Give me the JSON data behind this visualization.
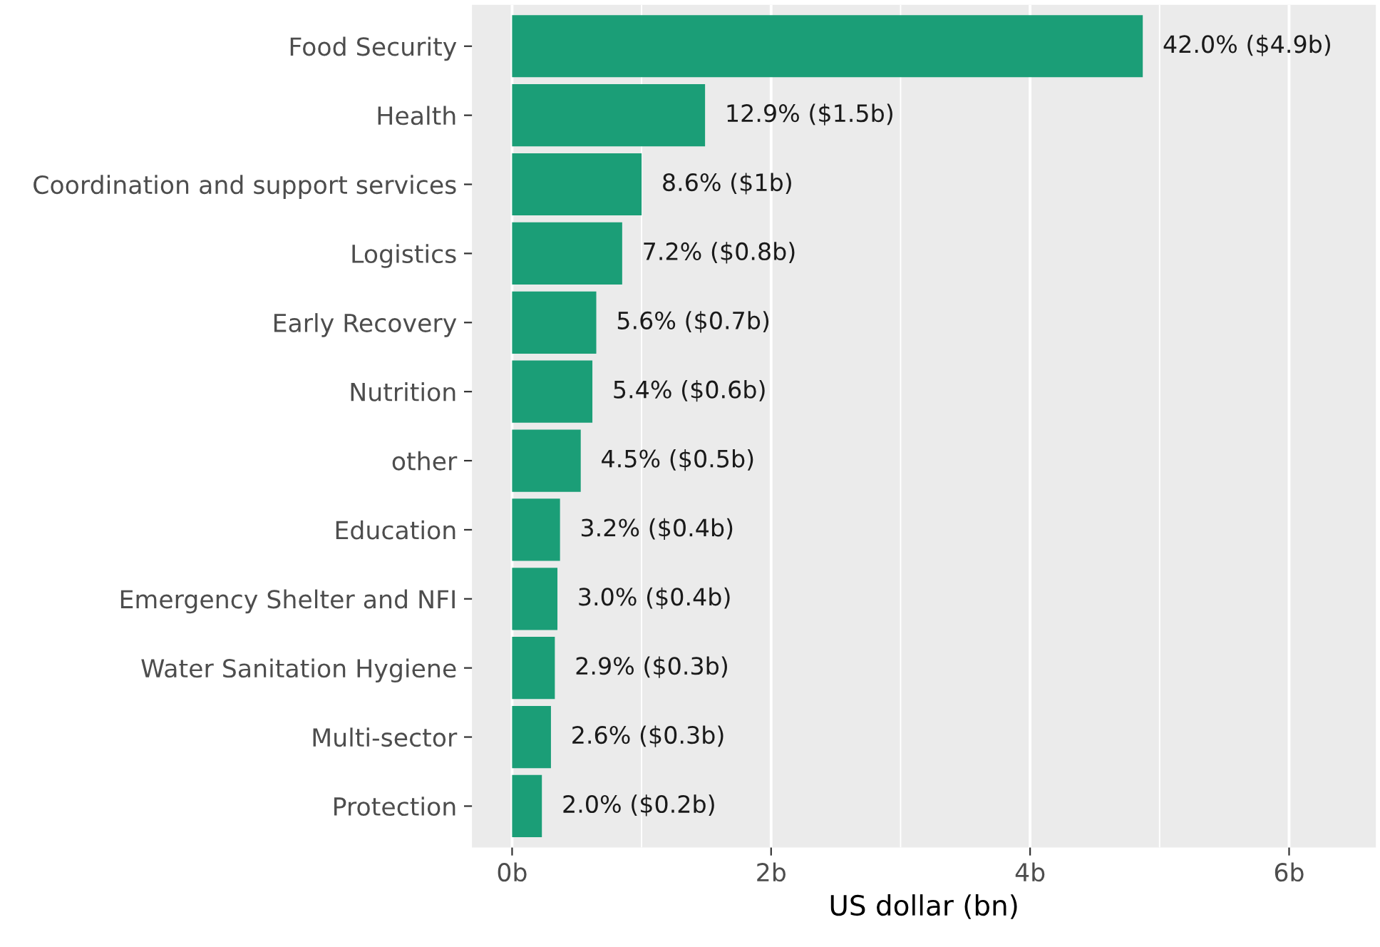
{
  "chart_data": {
    "type": "bar",
    "orientation": "horizontal",
    "xlabel": "US dollar (bn)",
    "categories": [
      "Food Security",
      "Health",
      "Coordination and support services",
      "Logistics",
      "Early Recovery",
      "Nutrition",
      "other",
      "Education",
      "Emergency Shelter and NFI",
      "Water Sanitation Hygiene",
      "Multi-sector",
      "Protection"
    ],
    "values": [
      4.87,
      1.49,
      1.0,
      0.85,
      0.65,
      0.62,
      0.53,
      0.37,
      0.35,
      0.33,
      0.3,
      0.23
    ],
    "annotations": [
      {
        "text": "42.0% ($4.9b)",
        "x": 4.87,
        "y": "Food Security"
      },
      {
        "text": "12.9% ($1.5b)",
        "x": 1.49,
        "y": "Health"
      },
      {
        "text": "8.6% ($1b)",
        "x": 1.0,
        "y": "Coordination and support services"
      },
      {
        "text": "7.2% ($0.8b)",
        "x": 0.85,
        "y": "Logistics"
      },
      {
        "text": "5.6% ($0.7b)",
        "x": 0.65,
        "y": "Early Recovery"
      },
      {
        "text": "5.4% ($0.6b)",
        "x": 0.62,
        "y": "Nutrition"
      },
      {
        "text": "4.5% ($0.5b)",
        "x": 0.53,
        "y": "other"
      },
      {
        "text": "3.2% ($0.4b)",
        "x": 0.37,
        "y": "Education"
      },
      {
        "text": "3.0% ($0.4b)",
        "x": 0.35,
        "y": "Emergency Shelter and NFI"
      },
      {
        "text": "2.9% ($0.3b)",
        "x": 0.33,
        "y": "Water Sanitation Hygiene"
      },
      {
        "text": "2.6% ($0.3b)",
        "x": 0.3,
        "y": "Multi-sector"
      },
      {
        "text": "2.0% ($0.2b)",
        "x": 0.23,
        "y": "Protection"
      }
    ],
    "color": "#1b9e77",
    "xlim": [
      -0.31,
      6.67
    ],
    "xticks": [
      {
        "value": 0,
        "label": "0b"
      },
      {
        "value": 2,
        "label": "2b"
      },
      {
        "value": 4,
        "label": "4b"
      },
      {
        "value": 6,
        "label": "6b"
      }
    ],
    "grid": "x"
  }
}
